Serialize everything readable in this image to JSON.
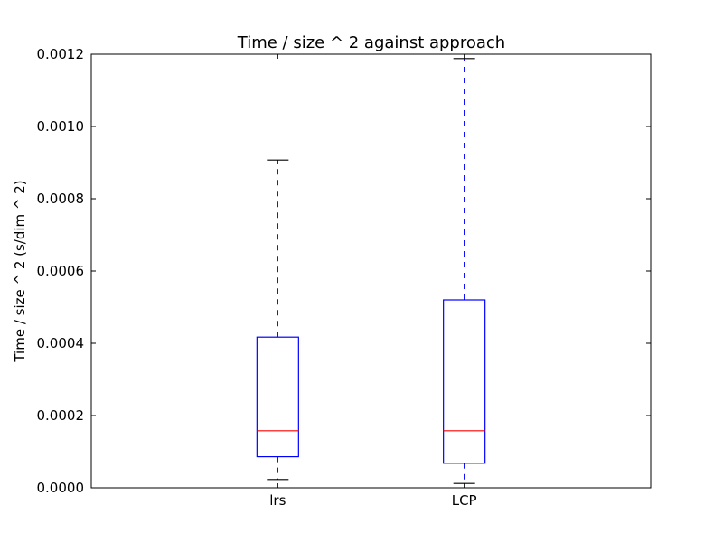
{
  "chart_data": {
    "type": "boxplot",
    "title": "Time / size ^ 2 against approach",
    "xlabel": "",
    "ylabel": "Time / size ^ 2 (s/dim ^ 2)",
    "ylim": [
      0,
      0.0012
    ],
    "yticks": [
      "0.0000",
      "0.0002",
      "0.0004",
      "0.0006",
      "0.0008",
      "0.0010",
      "0.0012"
    ],
    "grid": false,
    "categories": [
      "lrs",
      "LCP"
    ],
    "boxes": [
      {
        "category": "lrs",
        "whisker_low": 2.3e-05,
        "q1": 8.6e-05,
        "median": 0.000158,
        "q3": 0.000417,
        "whisker_high": 0.000907
      },
      {
        "category": "LCP",
        "whisker_low": 1.2e-05,
        "q1": 6.8e-05,
        "median": 0.000158,
        "q3": 0.00052,
        "whisker_high": 0.001188
      }
    ],
    "colors": {
      "box": "#0000ff",
      "median": "#ff0000",
      "whisker": "#0000ff",
      "cap": "#000000"
    }
  }
}
